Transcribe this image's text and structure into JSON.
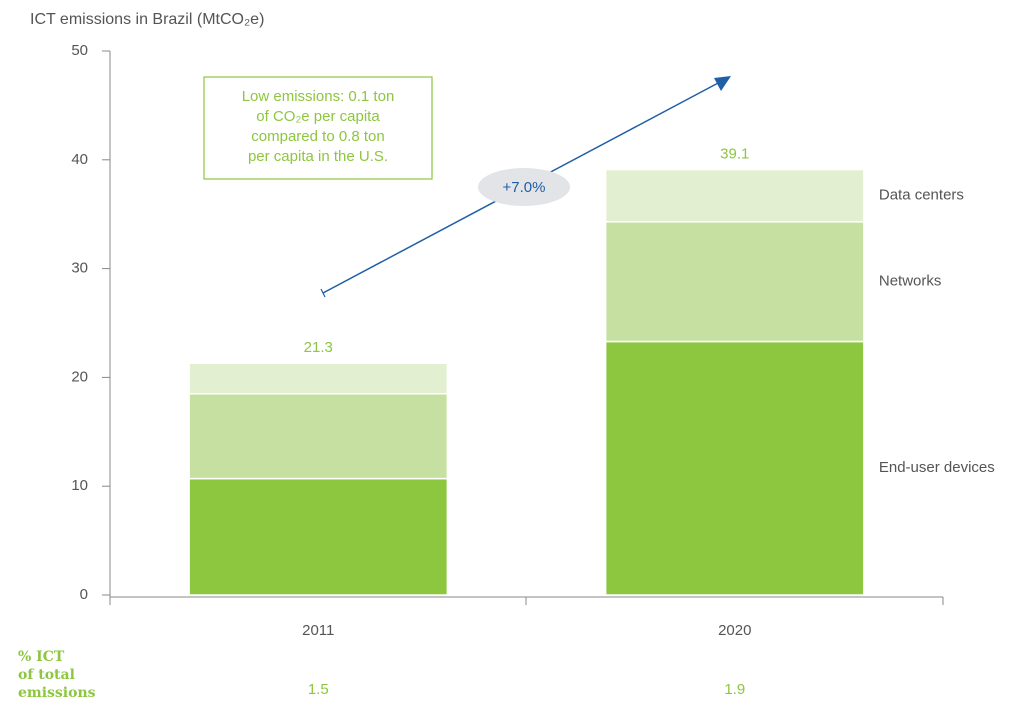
{
  "chart_data": {
    "type": "stacked_bar",
    "title": "ICT emissions in Brazil (MtCO₂e)",
    "categories": [
      "2011",
      "2020"
    ],
    "series": [
      {
        "name": "End-user devices",
        "color": "#8dc63f",
        "values": [
          10.7,
          23.3
        ]
      },
      {
        "name": "Networks",
        "color": "#c5e0a0",
        "values": [
          7.8,
          11.0
        ]
      },
      {
        "name": "Data centers",
        "color": "#e2efd0",
        "values": [
          2.8,
          4.8
        ]
      }
    ],
    "totals": [
      21.3,
      39.1
    ],
    "ylim": [
      0,
      50
    ],
    "yticks": [
      0,
      10,
      20,
      30,
      40,
      50
    ],
    "annotation": [
      "Low emissions: 0.1 ton",
      "of CO₂e per capita",
      "compared to 0.8 ton",
      "per capita in the U.S."
    ],
    "growth_label": "+7.0%",
    "row_label": [
      "% ICT",
      "of total",
      "emissions"
    ],
    "row_values": [
      1.5,
      1.9
    ]
  }
}
